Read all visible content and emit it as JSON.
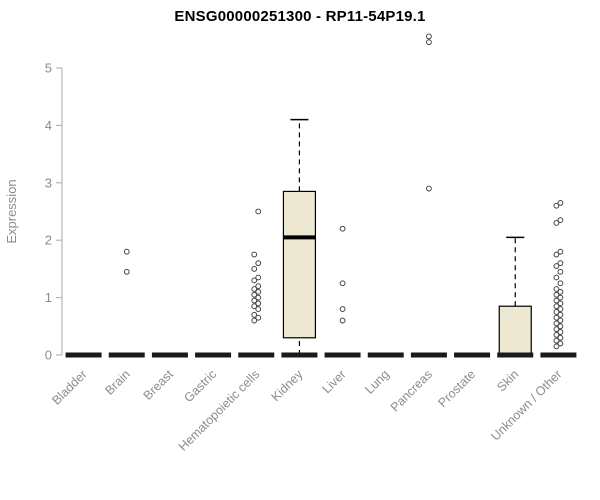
{
  "chart_data": {
    "type": "boxplot",
    "title": "ENSG00000251300 - RP11-54P19.1",
    "ylabel": "Expression",
    "ylim": [
      0,
      5.6
    ],
    "yticks": [
      0,
      1,
      2,
      3,
      4,
      5
    ],
    "grid": false,
    "legend": "none",
    "categories": [
      "Bladder",
      "Brain",
      "Breast",
      "Gastric",
      "Hematopoietic cells",
      "Kidney",
      "Liver",
      "Lung",
      "Pancreas",
      "Prostate",
      "Skin",
      "Unknown / Other"
    ],
    "boxes": [
      {
        "category": "Bladder",
        "min": 0,
        "q1": 0,
        "median": 0,
        "q3": 0,
        "max": 0,
        "outliers": []
      },
      {
        "category": "Brain",
        "min": 0,
        "q1": 0,
        "median": 0,
        "q3": 0,
        "max": 0,
        "outliers": [
          1.45,
          1.8
        ]
      },
      {
        "category": "Breast",
        "min": 0,
        "q1": 0,
        "median": 0,
        "q3": 0,
        "max": 0,
        "outliers": []
      },
      {
        "category": "Gastric",
        "min": 0,
        "q1": 0,
        "median": 0,
        "q3": 0,
        "max": 0,
        "outliers": []
      },
      {
        "category": "Hematopoietic cells",
        "min": 0,
        "q1": 0,
        "median": 0,
        "q3": 0,
        "max": 0,
        "outliers": [
          0.6,
          0.65,
          0.7,
          0.8,
          0.85,
          0.9,
          0.95,
          1.0,
          1.05,
          1.1,
          1.15,
          1.2,
          1.3,
          1.35,
          1.5,
          1.6,
          1.75,
          2.5
        ]
      },
      {
        "category": "Kidney",
        "min": 0,
        "q1": 0.3,
        "median": 2.05,
        "q3": 2.85,
        "max": 4.1,
        "outliers": []
      },
      {
        "category": "Liver",
        "min": 0,
        "q1": 0,
        "median": 0,
        "q3": 0,
        "max": 0,
        "outliers": [
          0.6,
          0.8,
          1.25,
          2.2
        ]
      },
      {
        "category": "Lung",
        "min": 0,
        "q1": 0,
        "median": 0,
        "q3": 0,
        "max": 0,
        "outliers": []
      },
      {
        "category": "Pancreas",
        "min": 0,
        "q1": 0,
        "median": 0,
        "q3": 0,
        "max": 0,
        "outliers": [
          2.9,
          5.45,
          5.55
        ]
      },
      {
        "category": "Prostate",
        "min": 0,
        "q1": 0,
        "median": 0,
        "q3": 0,
        "max": 0,
        "outliers": []
      },
      {
        "category": "Skin",
        "min": 0,
        "q1": 0,
        "median": 0,
        "q3": 0.85,
        "max": 2.05,
        "outliers": []
      },
      {
        "category": "Unknown / Other",
        "min": 0,
        "q1": 0,
        "median": 0,
        "q3": 0,
        "max": 0,
        "outliers": [
          0.15,
          0.2,
          0.25,
          0.3,
          0.35,
          0.4,
          0.45,
          0.5,
          0.55,
          0.6,
          0.65,
          0.7,
          0.75,
          0.8,
          0.85,
          0.9,
          0.95,
          1.0,
          1.05,
          1.1,
          1.15,
          1.25,
          1.35,
          1.45,
          1.55,
          1.6,
          1.75,
          1.8,
          2.3,
          2.35,
          2.6,
          2.65
        ]
      }
    ],
    "colors": {
      "box_fill": "#ede8d1",
      "box_border": "#000000",
      "median": "#000000",
      "whisker": "#000000",
      "zero_bar": "#1a1a1a",
      "axis": "#aaaaaa",
      "tick_label": "#8c8c8c",
      "axis_label": "#8c8c8c",
      "outlier": "#444444",
      "title": "#000000"
    }
  }
}
